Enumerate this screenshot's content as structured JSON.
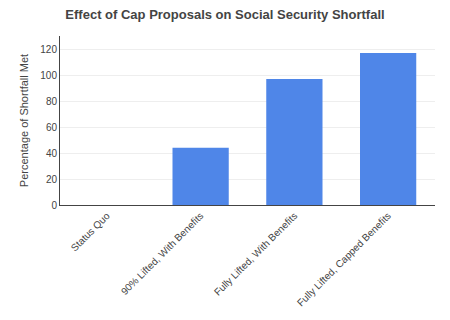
{
  "chart_data": {
    "type": "bar",
    "title": "Effect of Cap Proposals on Social Security Shortfall",
    "categories": [
      "Status Quo",
      "90% Lifted, With Benefits",
      "Fully Lifted, With Benefits",
      "Fully Lifted, Capped Benefits"
    ],
    "values": [
      0,
      44,
      97,
      117
    ],
    "color": "#4f86e8",
    "ylabel": "Percentage of Shortfall Met",
    "ylim": [
      0,
      130
    ],
    "yticks": [
      0,
      20,
      40,
      60,
      80,
      100,
      120
    ],
    "grid": true
  }
}
